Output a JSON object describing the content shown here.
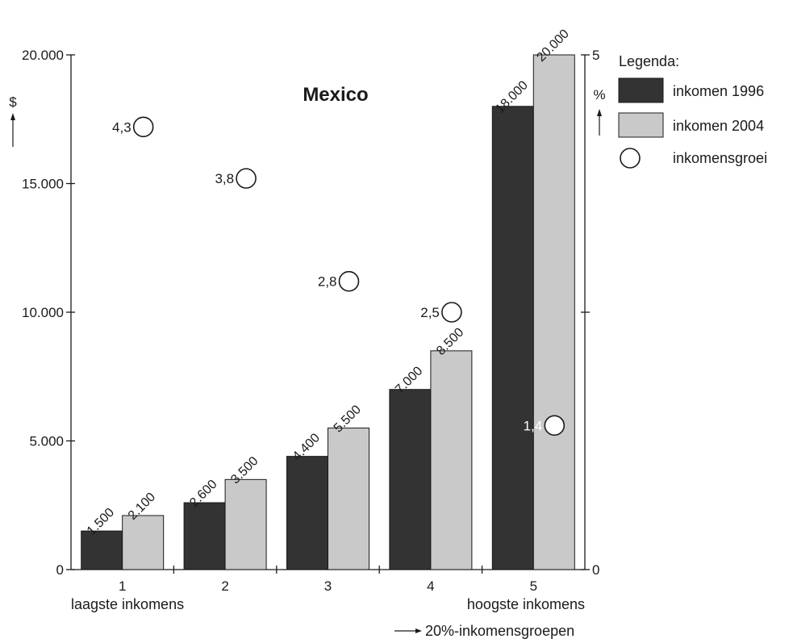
{
  "chart_data": {
    "type": "bar",
    "title": "Mexico",
    "categories": [
      "1",
      "2",
      "3",
      "4",
      "5"
    ],
    "category_notes": {
      "first": "laagste inkomens",
      "last": "hoogste inkomens"
    },
    "xlabel": "20%-inkomensgroepen",
    "ylabel_left": "$",
    "ylabel_right": "%",
    "ylim": [
      0,
      20000
    ],
    "yticks": [
      0,
      5000,
      10000,
      15000,
      20000
    ],
    "ytick_labels": [
      "0",
      "5.000",
      "10.000",
      "15.000",
      "20.000"
    ],
    "y2lim": [
      0,
      5
    ],
    "y2ticks": [
      0,
      2.5,
      5
    ],
    "y2tick_labels": [
      "0",
      "",
      "5"
    ],
    "series": [
      {
        "name": "inkomen 1996",
        "color": "#333333",
        "values": [
          1500,
          2600,
          4400,
          7000,
          18000
        ],
        "labels": [
          "1.500",
          "2.600",
          "4.400",
          "7.000",
          "18.000"
        ]
      },
      {
        "name": "inkomen 2004",
        "color": "#c9c9c9",
        "values": [
          2100,
          3500,
          5500,
          8500,
          20000
        ],
        "labels": [
          "2.100",
          "3.500",
          "5.500",
          "8.500",
          "20.000"
        ]
      }
    ],
    "growth": {
      "name": "inkomensgroei",
      "values": [
        4.3,
        3.8,
        2.8,
        2.5,
        1.4
      ],
      "labels": [
        "4,3",
        "3,8",
        "2,8",
        "2,5",
        "1,4"
      ]
    },
    "legend": {
      "title": "Legenda:",
      "position": "top-right"
    },
    "grid": false
  }
}
